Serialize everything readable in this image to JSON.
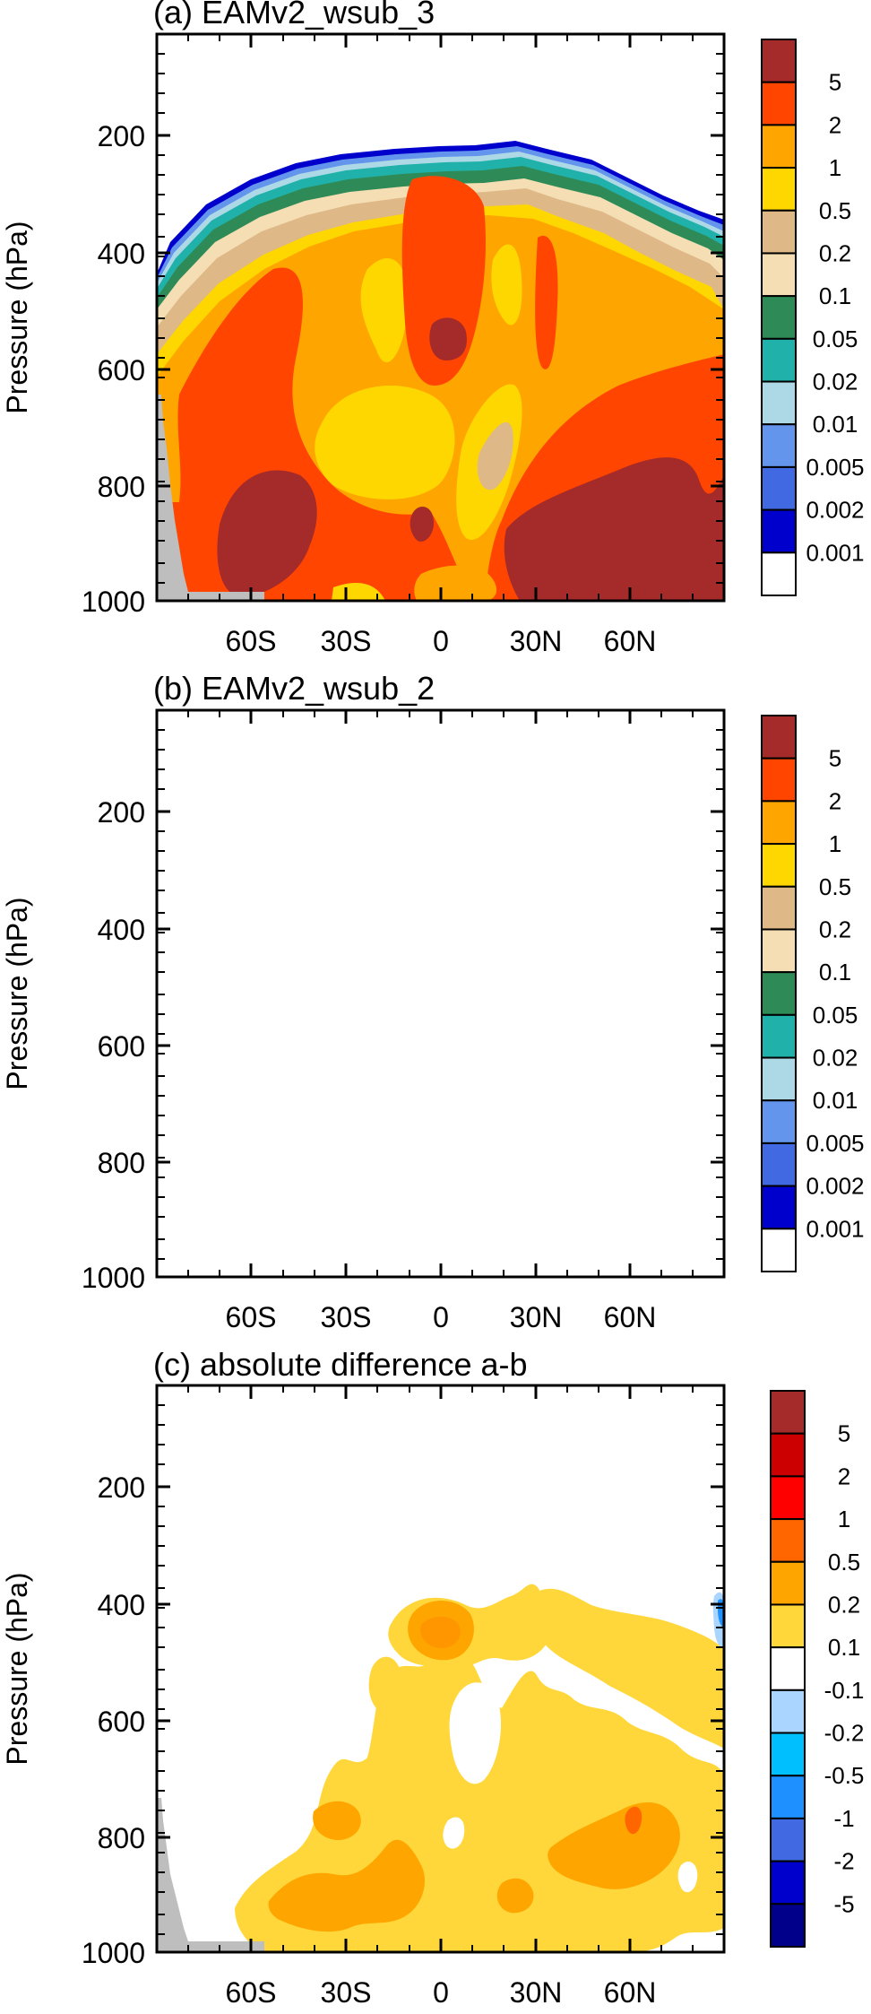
{
  "chart_data": [
    {
      "type": "heatmap",
      "title": "(a) EAMv2_wsub_3",
      "ylabel": "Pressure (hPa)",
      "xlabel": "",
      "x_range": [
        -90,
        90
      ],
      "y_range": [
        0,
        1000
      ],
      "y_reversed": true,
      "x_ticks": [
        "60S",
        "30S",
        "0",
        "30N",
        "60N"
      ],
      "y_ticks": [
        "200",
        "400",
        "600",
        "800",
        "1000"
      ],
      "colorbar": {
        "labels": [
          "5",
          "2",
          "1",
          "0.5",
          "0.2",
          "0.1",
          "0.05",
          "0.02",
          "0.01",
          "0.005",
          "0.002",
          "0.001"
        ],
        "colors": [
          "#a52a2a",
          "#ff4500",
          "#ffa500",
          "#ffd700",
          "#deb887",
          "#f5deb3",
          "#2e8b57",
          "#20b2aa",
          "#add8e6",
          "#6495ed",
          "#4169e1",
          "#0000cd",
          "#ffffff"
        ]
      },
      "cloud_top_hPa": [
        [
          -88,
          430
        ],
        [
          -80,
          395
        ],
        [
          -70,
          350
        ],
        [
          -60,
          305
        ],
        [
          -50,
          270
        ],
        [
          -40,
          245
        ],
        [
          -30,
          232
        ],
        [
          -15,
          224
        ],
        [
          0,
          222
        ],
        [
          15,
          220
        ],
        [
          25,
          214
        ],
        [
          35,
          225
        ],
        [
          50,
          250
        ],
        [
          60,
          270
        ],
        [
          70,
          300
        ],
        [
          80,
          330
        ],
        [
          88,
          360
        ]
      ],
      "regions": [
        {
          "label": "5",
          "note": "SH mid-latitude lower troposphere maximum"
        },
        {
          "label": "5",
          "note": "NH high-latitude lower troposphere maximum"
        },
        {
          "label": "5",
          "note": "tropical mid troposphere maximum near 0"
        }
      ]
    },
    {
      "type": "heatmap",
      "title": "(b) EAMv2_wsub_2",
      "ylabel": "Pressure (hPa)",
      "xlabel": "",
      "x_range": [
        -90,
        90
      ],
      "y_range": [
        0,
        1000
      ],
      "y_reversed": true,
      "x_ticks": [
        "60S",
        "30S",
        "0",
        "30N",
        "60N"
      ],
      "y_ticks": [
        "200",
        "400",
        "600",
        "800",
        "1000"
      ],
      "colorbar": {
        "labels": [
          "5",
          "2",
          "1",
          "0.5",
          "0.2",
          "0.1",
          "0.05",
          "0.02",
          "0.01",
          "0.005",
          "0.002",
          "0.001"
        ],
        "colors": [
          "#a52a2a",
          "#ff4500",
          "#ffa500",
          "#ffd700",
          "#deb887",
          "#f5deb3",
          "#2e8b57",
          "#20b2aa",
          "#add8e6",
          "#6495ed",
          "#4169e1",
          "#0000cd",
          "#ffffff"
        ]
      }
    },
    {
      "type": "heatmap",
      "title": "(c) absolute difference a-b",
      "ylabel": "Pressure (hPa)",
      "xlabel": "",
      "x_range": [
        -90,
        90
      ],
      "y_range": [
        0,
        1000
      ],
      "y_reversed": true,
      "x_ticks": [
        "60S",
        "30S",
        "0",
        "30N",
        "60N"
      ],
      "y_ticks": [
        "200",
        "400",
        "600",
        "800",
        "1000"
      ],
      "colorbar": {
        "labels": [
          "5",
          "2",
          "1",
          "0.5",
          "0.2",
          "0.1",
          "-0.1",
          "-0.2",
          "-0.5",
          "-1",
          "-2",
          "-5"
        ],
        "colors": [
          "#a52a2a",
          "#cc0000",
          "#ff0000",
          "#ff6600",
          "#ffa500",
          "#ffd73a",
          "#ffffff",
          "#a9d5ff",
          "#00bfff",
          "#1e90ff",
          "#4169e1",
          "#0000cd",
          "#00008b"
        ]
      }
    }
  ]
}
